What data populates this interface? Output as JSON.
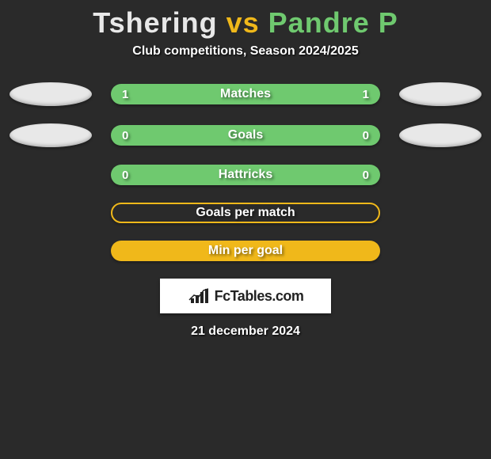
{
  "title": {
    "player1": "Tshering",
    "vs": "vs",
    "player2": "Pandre P",
    "player1_color": "#e8e8e8",
    "vs_color": "#f0b81a",
    "player2_color": "#6fc96f"
  },
  "subtitle": "Club competitions, Season 2024/2025",
  "background_color": "#2a2a2a",
  "stat_rows": [
    {
      "label": "Matches",
      "left_value": "1",
      "right_value": "1",
      "bar_fill": "#6fc96f",
      "bar_outline": null,
      "left_badge": "#e8e8e8",
      "right_badge": "#e8e8e8"
    },
    {
      "label": "Goals",
      "left_value": "0",
      "right_value": "0",
      "bar_fill": "#6fc96f",
      "bar_outline": null,
      "left_badge": "#e8e8e8",
      "right_badge": "#e8e8e8"
    },
    {
      "label": "Hattricks",
      "left_value": "0",
      "right_value": "0",
      "bar_fill": "#6fc96f",
      "bar_outline": null,
      "left_badge": null,
      "right_badge": null
    },
    {
      "label": "Goals per match",
      "left_value": "",
      "right_value": "",
      "bar_fill": null,
      "bar_outline": "#f0b81a",
      "left_badge": null,
      "right_badge": null
    },
    {
      "label": "Min per goal",
      "left_value": "",
      "right_value": "",
      "bar_fill": "#f0b81a",
      "bar_outline": null,
      "left_badge": null,
      "right_badge": null
    }
  ],
  "brand": "FcTables.com",
  "date": "21 december 2024"
}
